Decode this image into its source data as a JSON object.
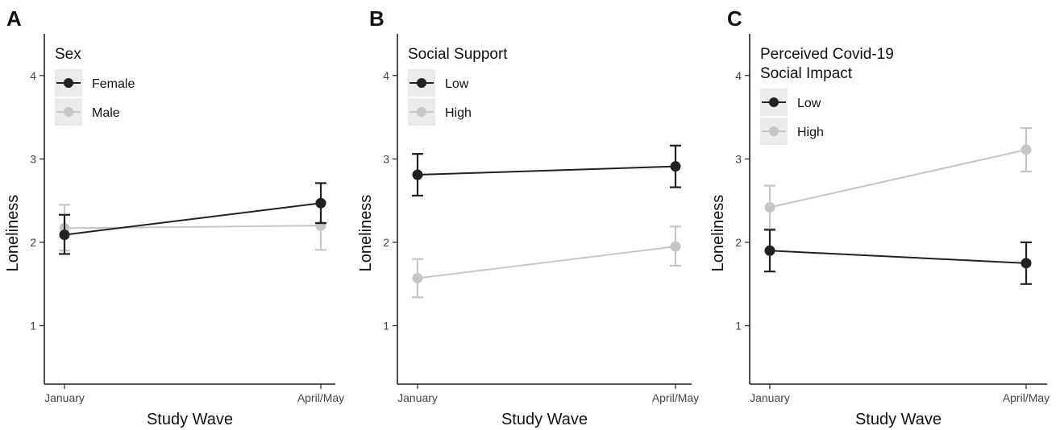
{
  "chart_data": [
    {
      "type": "line",
      "panel_label": "A",
      "xlabel": "Study Wave",
      "ylabel": "Loneliness",
      "categories": [
        "January",
        "April/May"
      ],
      "ylim": [
        0.3,
        4.5
      ],
      "yticks": [
        1,
        2,
        3,
        4
      ],
      "legend_title": [
        "Sex"
      ],
      "legend_position": "top-left",
      "series": [
        {
          "name": "Female",
          "color": "#222222",
          "values": [
            2.09,
            2.47
          ],
          "err_low": [
            1.86,
            2.23
          ],
          "err_high": [
            2.33,
            2.71
          ]
        },
        {
          "name": "Male",
          "color": "#c6c6c6",
          "values": [
            2.17,
            2.2
          ],
          "err_low": [
            1.9,
            1.91
          ],
          "err_high": [
            2.45,
            2.49
          ]
        }
      ]
    },
    {
      "type": "line",
      "panel_label": "B",
      "xlabel": "Study Wave",
      "ylabel": "Loneliness",
      "categories": [
        "January",
        "April/May"
      ],
      "ylim": [
        0.3,
        4.5
      ],
      "yticks": [
        1,
        2,
        3,
        4
      ],
      "legend_title": [
        "Social Support"
      ],
      "legend_position": "top-left",
      "series": [
        {
          "name": "Low",
          "color": "#222222",
          "values": [
            2.81,
            2.91
          ],
          "err_low": [
            2.56,
            2.66
          ],
          "err_high": [
            3.06,
            3.16
          ]
        },
        {
          "name": "High",
          "color": "#c6c6c6",
          "values": [
            1.57,
            1.95
          ],
          "err_low": [
            1.34,
            1.72
          ],
          "err_high": [
            1.8,
            2.19
          ]
        }
      ]
    },
    {
      "type": "line",
      "panel_label": "C",
      "xlabel": "Study Wave",
      "ylabel": "Loneliness",
      "categories": [
        "January",
        "April/May"
      ],
      "ylim": [
        0.3,
        4.5
      ],
      "yticks": [
        1,
        2,
        3,
        4
      ],
      "legend_title": [
        "Perceived Covid-19",
        "Social Impact"
      ],
      "legend_position": "top-left",
      "series": [
        {
          "name": "Low",
          "color": "#222222",
          "values": [
            1.9,
            1.75
          ],
          "err_low": [
            1.65,
            1.5
          ],
          "err_high": [
            2.15,
            2.0
          ]
        },
        {
          "name": "High",
          "color": "#c6c6c6",
          "values": [
            2.42,
            3.11
          ],
          "err_low": [
            2.16,
            2.85
          ],
          "err_high": [
            2.68,
            3.37
          ]
        }
      ]
    }
  ]
}
